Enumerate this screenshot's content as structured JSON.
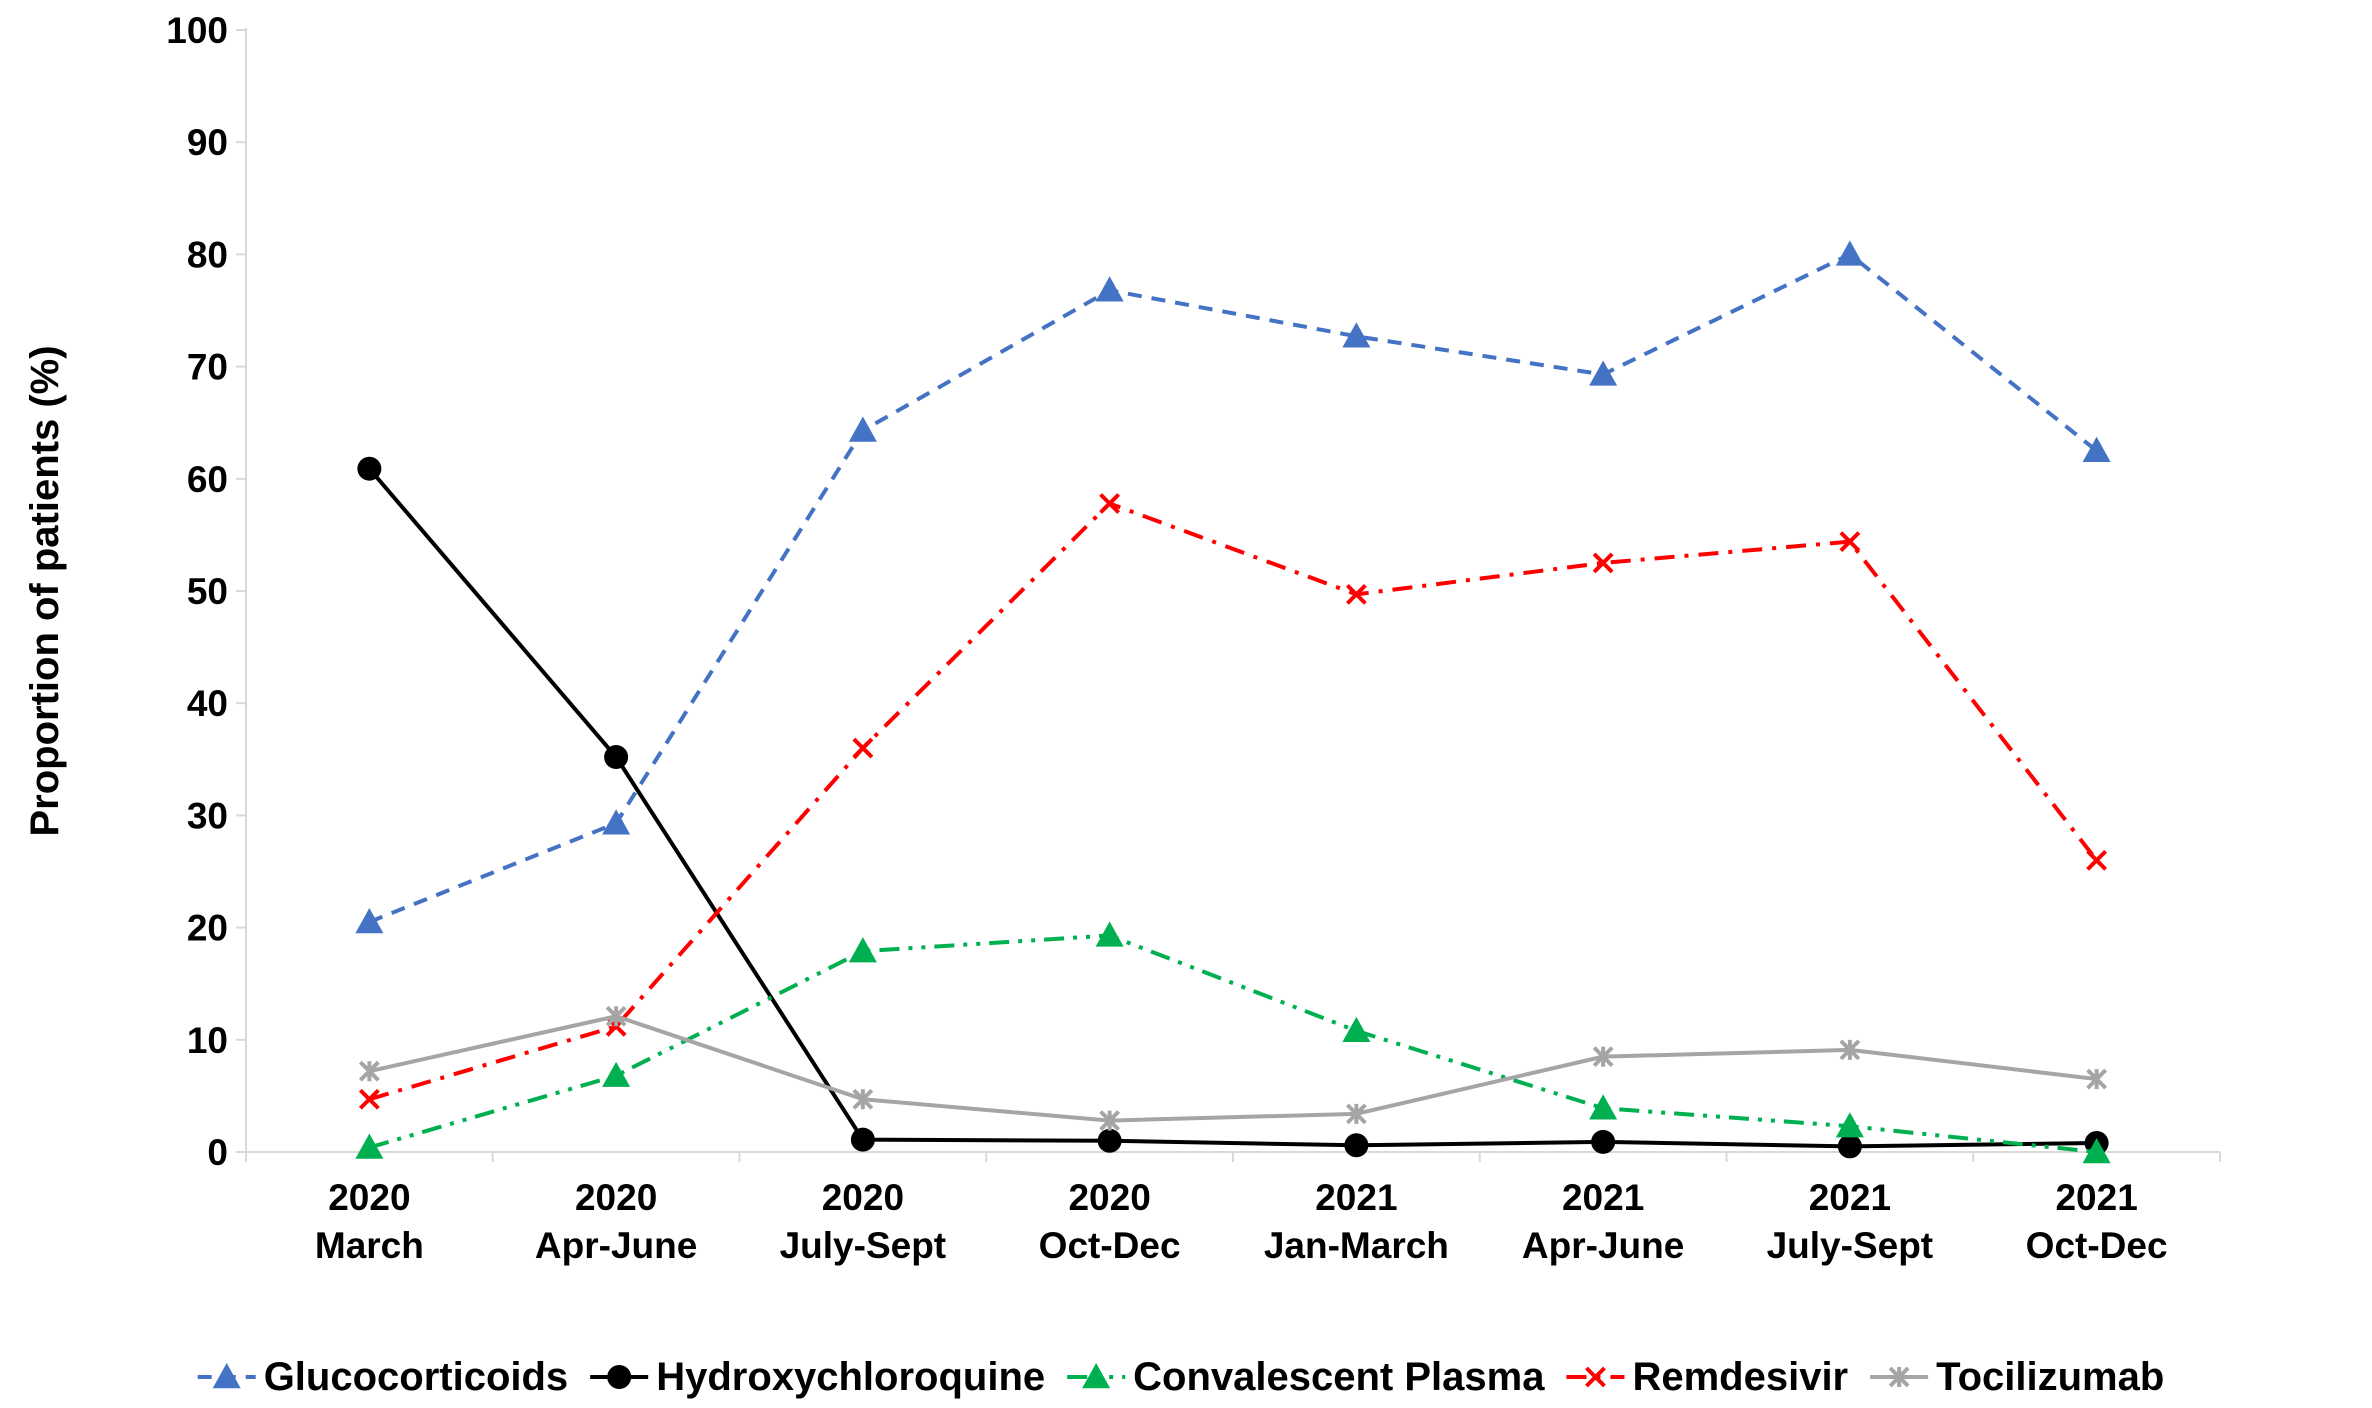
{
  "chart_data": {
    "type": "line",
    "title": "",
    "xlabel": "",
    "ylabel": "Proportion of patients (%)",
    "ylim": [
      0,
      100
    ],
    "yticks": [
      0,
      10,
      20,
      30,
      40,
      50,
      60,
      70,
      80,
      90,
      100
    ],
    "grid": false,
    "legend_position": "bottom",
    "categories": [
      {
        "year": "2020",
        "period": "March"
      },
      {
        "year": "2020",
        "period": "Apr-June"
      },
      {
        "year": "2020",
        "period": "July-Sept"
      },
      {
        "year": "2020",
        "period": "Oct-Dec"
      },
      {
        "year": "2021",
        "period": "Jan-March"
      },
      {
        "year": "2021",
        "period": "Apr-June"
      },
      {
        "year": "2021",
        "period": "July-Sept"
      },
      {
        "year": "2021",
        "period": "Oct-Dec"
      }
    ],
    "series": [
      {
        "name": "Glucocorticoids",
        "color": "#4472C4",
        "line_style": "dashed",
        "marker": "triangle",
        "values": [
          20.5,
          29.3,
          64.3,
          76.8,
          72.7,
          69.3,
          80.0,
          62.5
        ]
      },
      {
        "name": "Hydroxychloroquine",
        "color": "#000000",
        "line_style": "solid",
        "marker": "circle",
        "values": [
          60.9,
          35.2,
          1.1,
          1.0,
          0.6,
          0.9,
          0.5,
          0.8
        ]
      },
      {
        "name": "Convalescent Plasma",
        "color": "#00B050",
        "line_style": "dash-dot-dot",
        "marker": "triangle",
        "values": [
          0.4,
          6.8,
          17.9,
          19.3,
          10.8,
          3.9,
          2.3,
          0.0
        ]
      },
      {
        "name": "Remdesivir",
        "color": "#FF0000",
        "line_style": "dash-dot",
        "marker": "x",
        "values": [
          4.7,
          11.2,
          36.0,
          57.8,
          49.7,
          52.5,
          54.4,
          26.0
        ]
      },
      {
        "name": "Tocilizumab",
        "color": "#A5A5A5",
        "line_style": "solid",
        "marker": "star",
        "values": [
          7.2,
          12.1,
          4.7,
          2.8,
          3.4,
          8.5,
          9.1,
          6.5
        ]
      }
    ]
  }
}
